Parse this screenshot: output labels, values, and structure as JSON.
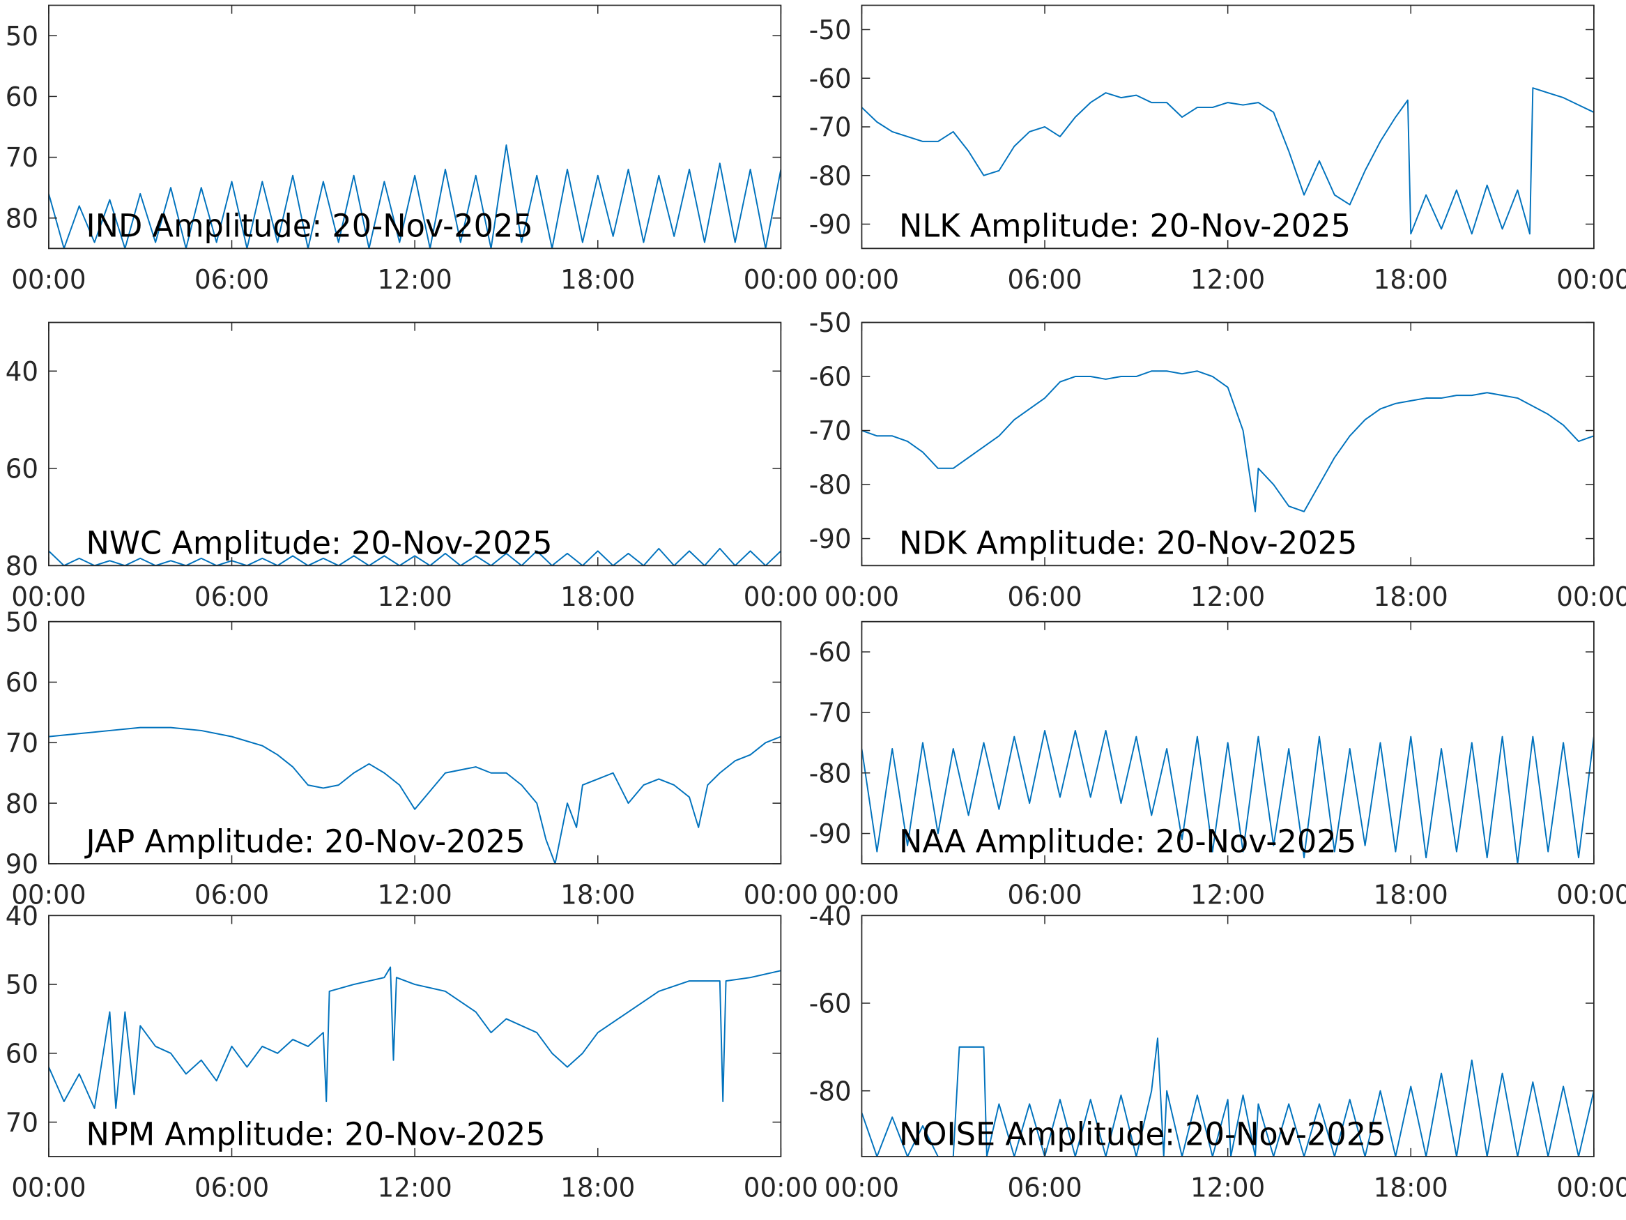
{
  "chart_data": [
    {
      "type": "line",
      "annotation": "IND Amplitude: 20-Nov-2025",
      "x": [
        0,
        0.5,
        1,
        1.5,
        2,
        2.5,
        3,
        3.5,
        4,
        4.5,
        5,
        5.5,
        6,
        6.5,
        7,
        7.5,
        8,
        8.5,
        9,
        9.5,
        10,
        10.5,
        11,
        11.5,
        12,
        12.5,
        13,
        13.5,
        14,
        14.5,
        15,
        15.5,
        16,
        16.5,
        17,
        17.5,
        18,
        18.5,
        19,
        19.5,
        20,
        20.5,
        21,
        21.5,
        22,
        22.5,
        23,
        23.5,
        24
      ],
      "series": [
        {
          "color": "#0072bd",
          "values": [
            -76,
            -85,
            -78,
            -84,
            -77,
            -85,
            -76,
            -84,
            -75,
            -85,
            -75,
            -84,
            -74,
            -85,
            -74,
            -84,
            -73,
            -85,
            -74,
            -84,
            -73,
            -85,
            -74,
            -84,
            -73,
            -85,
            -72,
            -84,
            -73,
            -85,
            -68,
            -84,
            -73,
            -85,
            -72,
            -84,
            -73,
            -83,
            -72,
            -84,
            -73,
            -83,
            -72,
            -84,
            -71,
            -84,
            -72,
            -85,
            -72
          ]
        }
      ],
      "xlim": [
        0,
        24
      ],
      "xticks": [
        {
          "value": 0,
          "label": "00:00"
        },
        {
          "value": 6,
          "label": "06:00"
        },
        {
          "value": 12,
          "label": "12:00"
        },
        {
          "value": 18,
          "label": "18:00"
        },
        {
          "value": 24,
          "label": "00:00"
        }
      ],
      "ylim": [
        -85,
        -45
      ],
      "yticks": [
        {
          "value": -50,
          "label": "50"
        },
        {
          "value": -60,
          "label": "60"
        },
        {
          "value": -70,
          "label": "70"
        },
        {
          "value": -80,
          "label": "80"
        }
      ]
    },
    {
      "type": "line",
      "annotation": "NLK Amplitude: 20-Nov-2025",
      "x": [
        0,
        0.5,
        1,
        1.5,
        2,
        2.5,
        3,
        3.5,
        4,
        4.5,
        5,
        5.5,
        6,
        6.5,
        7,
        7.5,
        8,
        8.5,
        9,
        9.5,
        10,
        10.5,
        11,
        11.5,
        12,
        12.5,
        13,
        13.5,
        14,
        14.5,
        15,
        15.5,
        16,
        16.5,
        17,
        17.5,
        17.9,
        18,
        18.5,
        19,
        19.5,
        20,
        20.5,
        21,
        21.5,
        21.9,
        22,
        22.5,
        23,
        23.5,
        24
      ],
      "series": [
        {
          "color": "#0072bd",
          "values": [
            -66,
            -69,
            -71,
            -72,
            -73,
            -73,
            -71,
            -75,
            -80,
            -79,
            -74,
            -71,
            -70,
            -72,
            -68,
            -65,
            -63,
            -64,
            -63.5,
            -65,
            -65,
            -68,
            -66,
            -66,
            -65,
            -65.5,
            -65,
            -67,
            -75,
            -84,
            -77,
            -84,
            -86,
            -79,
            -73,
            -68,
            -64.5,
            -92,
            -84,
            -91,
            -83,
            -92,
            -82,
            -91,
            -83,
            -92,
            -62,
            -63,
            -64,
            -65.5,
            -67
          ]
        }
      ],
      "xlim": [
        0,
        24
      ],
      "xticks": [
        {
          "value": 0,
          "label": "00:00"
        },
        {
          "value": 6,
          "label": "06:00"
        },
        {
          "value": 12,
          "label": "12:00"
        },
        {
          "value": 18,
          "label": "18:00"
        },
        {
          "value": 24,
          "label": "00:00"
        }
      ],
      "ylim": [
        -95,
        -45
      ],
      "yticks": [
        -50,
        -60,
        -70,
        -80,
        -90
      ]
    },
    {
      "type": "line",
      "annotation": "NWC Amplitude: 20-Nov-2025",
      "x": [
        0,
        0.5,
        1,
        1.5,
        2,
        2.5,
        3,
        3.5,
        4,
        4.5,
        5,
        5.5,
        6,
        6.5,
        7,
        7.5,
        8,
        8.5,
        9,
        9.5,
        10,
        10.5,
        11,
        11.5,
        12,
        12.5,
        13,
        13.5,
        14,
        14.5,
        15,
        15.5,
        16,
        16.5,
        17,
        17.5,
        18,
        18.5,
        19,
        19.5,
        20,
        20.5,
        21,
        21.5,
        22,
        22.5,
        23,
        23.5,
        24
      ],
      "series": [
        {
          "color": "#0072bd",
          "values": [
            -77,
            -80,
            -78.5,
            -80,
            -79,
            -80,
            -78.5,
            -80,
            -79,
            -80,
            -78.5,
            -80,
            -79,
            -80,
            -78.5,
            -80,
            -78,
            -80,
            -78.5,
            -80,
            -78,
            -80,
            -78,
            -80,
            -78,
            -80,
            -77.5,
            -80,
            -78,
            -80,
            -77.5,
            -80,
            -77,
            -80,
            -77.5,
            -80,
            -77,
            -80,
            -77.5,
            -80,
            -76.5,
            -80,
            -77,
            -80,
            -76.5,
            -80,
            -77,
            -80,
            -77
          ]
        }
      ],
      "xlim": [
        0,
        24
      ],
      "xticks": [
        {
          "value": 0,
          "label": "00:00"
        },
        {
          "value": 6,
          "label": "06:00"
        },
        {
          "value": 12,
          "label": "12:00"
        },
        {
          "value": 18,
          "label": "18:00"
        },
        {
          "value": 24,
          "label": "00:00"
        }
      ],
      "ylim": [
        -80,
        -30
      ],
      "yticks": [
        {
          "value": -40,
          "label": "40"
        },
        {
          "value": -60,
          "label": "60"
        },
        {
          "value": -80,
          "label": "80"
        }
      ]
    },
    {
      "type": "line",
      "annotation": "NDK Amplitude: 20-Nov-2025",
      "x": [
        0,
        0.5,
        1,
        1.5,
        2,
        2.5,
        3,
        3.5,
        4,
        4.5,
        5,
        5.5,
        6,
        6.5,
        7,
        7.5,
        8,
        8.5,
        9,
        9.5,
        10,
        10.5,
        11,
        11.5,
        12,
        12.5,
        12.9,
        13,
        13.5,
        14,
        14.5,
        15,
        15.5,
        16,
        16.5,
        17,
        17.5,
        18,
        18.5,
        19,
        19.5,
        20,
        20.5,
        21,
        21.5,
        22,
        22.5,
        23,
        23.5,
        24
      ],
      "series": [
        {
          "color": "#0072bd",
          "values": [
            -70,
            -71,
            -71,
            -72,
            -74,
            -77,
            -77,
            -75,
            -73,
            -71,
            -68,
            -66,
            -64,
            -61,
            -60,
            -60,
            -60.5,
            -60,
            -60,
            -59,
            -59,
            -59.5,
            -59,
            -60,
            -62,
            -70,
            -85,
            -77,
            -80,
            -84,
            -85,
            -80,
            -75,
            -71,
            -68,
            -66,
            -65,
            -64.5,
            -64,
            -64,
            -63.5,
            -63.5,
            -63,
            -63.5,
            -64,
            -65.5,
            -67,
            -69,
            -72,
            -71
          ]
        }
      ],
      "xlim": [
        0,
        24
      ],
      "xticks": [
        {
          "value": 0,
          "label": "00:00"
        },
        {
          "value": 6,
          "label": "06:00"
        },
        {
          "value": 12,
          "label": "12:00"
        },
        {
          "value": 18,
          "label": "18:00"
        },
        {
          "value": 24,
          "label": "00:00"
        }
      ],
      "ylim": [
        -95,
        -50
      ],
      "yticks": [
        -50,
        -60,
        -70,
        -80,
        -90
      ]
    },
    {
      "type": "line",
      "annotation": "JAP Amplitude: 20-Nov-2025",
      "x": [
        0,
        1,
        2,
        3,
        4,
        5,
        6,
        7,
        7.5,
        8,
        8.5,
        9,
        9.5,
        10,
        10.5,
        11,
        11.5,
        12,
        12.5,
        13,
        13.5,
        14,
        14.5,
        15,
        15.5,
        16,
        16.3,
        16.6,
        17,
        17.3,
        17.5,
        18,
        18.5,
        19,
        19.5,
        20,
        20.5,
        21,
        21.3,
        21.6,
        22,
        22.5,
        23,
        23.5,
        24
      ],
      "series": [
        {
          "color": "#0072bd",
          "values": [
            -69,
            -68.5,
            -68,
            -67.5,
            -67.5,
            -68,
            -69,
            -70.5,
            -72,
            -74,
            -77,
            -77.5,
            -77,
            -75,
            -73.5,
            -75,
            -77,
            -81,
            -78,
            -75,
            -74.5,
            -74,
            -75,
            -75,
            -77,
            -80,
            -86,
            -90,
            -80,
            -84,
            -77,
            -76,
            -75,
            -80,
            -77,
            -76,
            -77,
            -79,
            -84,
            -77,
            -75,
            -73,
            -72,
            -70,
            -69
          ]
        }
      ],
      "xlim": [
        0,
        24
      ],
      "xticks": [
        {
          "value": 0,
          "label": "00:00"
        },
        {
          "value": 6,
          "label": "06:00"
        },
        {
          "value": 12,
          "label": "12:00"
        },
        {
          "value": 18,
          "label": "18:00"
        },
        {
          "value": 24,
          "label": "00:00"
        }
      ],
      "ylim": [
        -90,
        -50
      ],
      "yticks": [
        {
          "value": -50,
          "label": "50"
        },
        {
          "value": -60,
          "label": "60"
        },
        {
          "value": -70,
          "label": "70"
        },
        {
          "value": -80,
          "label": "80"
        },
        {
          "value": -90,
          "label": "90"
        }
      ]
    },
    {
      "type": "line",
      "annotation": "NAA Amplitude: 20-Nov-2025",
      "x": [
        0,
        0.5,
        1,
        1.5,
        2,
        2.5,
        3,
        3.5,
        4,
        4.5,
        5,
        5.5,
        6,
        6.5,
        7,
        7.5,
        8,
        8.5,
        9,
        9.5,
        10,
        10.5,
        11,
        11.5,
        12,
        12.5,
        13,
        13.5,
        14,
        14.5,
        15,
        15.5,
        16,
        16.5,
        17,
        17.5,
        18,
        18.5,
        19,
        19.5,
        20,
        20.5,
        21,
        21.5,
        22,
        22.5,
        23,
        23.5,
        24
      ],
      "series": [
        {
          "color": "#0072bd",
          "values": [
            -76,
            -93,
            -76,
            -92,
            -75,
            -90,
            -76,
            -87,
            -75,
            -86,
            -74,
            -85,
            -73,
            -84,
            -73,
            -84,
            -73,
            -85,
            -74,
            -87,
            -76,
            -91,
            -74,
            -93,
            -75,
            -93,
            -74,
            -92,
            -76,
            -94,
            -74,
            -93,
            -76,
            -92,
            -75,
            -93,
            -74,
            -94,
            -76,
            -93,
            -75,
            -94,
            -74,
            -95,
            -74,
            -93,
            -75,
            -94,
            -74
          ]
        }
      ],
      "xlim": [
        0,
        24
      ],
      "xticks": [
        {
          "value": 0,
          "label": "00:00"
        },
        {
          "value": 6,
          "label": "06:00"
        },
        {
          "value": 12,
          "label": "12:00"
        },
        {
          "value": 18,
          "label": "18:00"
        },
        {
          "value": 24,
          "label": "00:00"
        }
      ],
      "ylim": [
        -95,
        -55
      ],
      "yticks": [
        -60,
        -70,
        -80,
        -90
      ]
    },
    {
      "type": "line",
      "annotation": "NPM Amplitude: 20-Nov-2025",
      "x": [
        0,
        0.5,
        1,
        1.5,
        2,
        2.2,
        2.5,
        2.8,
        3,
        3.5,
        4,
        4.5,
        5,
        5.5,
        6,
        6.5,
        7,
        7.5,
        8,
        8.5,
        9,
        9.1,
        9.2,
        10,
        11,
        11.2,
        11.3,
        11.4,
        12,
        13,
        14,
        14.5,
        15,
        16,
        16.5,
        17,
        17.5,
        18,
        19,
        20,
        21,
        22,
        22.1,
        22.2,
        23,
        24
      ],
      "series": [
        {
          "color": "#0072bd",
          "values": [
            -62,
            -67,
            -63,
            -68,
            -54,
            -68,
            -54,
            -66,
            -56,
            -59,
            -60,
            -63,
            -61,
            -64,
            -59,
            -62,
            -59,
            -60,
            -58,
            -59,
            -57,
            -67,
            -51,
            -50,
            -49,
            -47.5,
            -61,
            -49,
            -50,
            -51,
            -54,
            -57,
            -55,
            -57,
            -60,
            -62,
            -60,
            -57,
            -54,
            -51,
            -49.5,
            -49.5,
            -67,
            -49.5,
            -49,
            -48
          ]
        }
      ],
      "xlim": [
        0,
        24
      ],
      "xticks": [
        {
          "value": 0,
          "label": "00:00"
        },
        {
          "value": 6,
          "label": "06:00"
        },
        {
          "value": 12,
          "label": "12:00"
        },
        {
          "value": 18,
          "label": "18:00"
        },
        {
          "value": 24,
          "label": "00:00"
        }
      ],
      "ylim": [
        -75,
        -40
      ],
      "yticks": [
        {
          "value": -40,
          "label": "40"
        },
        {
          "value": -50,
          "label": "50"
        },
        {
          "value": -60,
          "label": "60"
        },
        {
          "value": -70,
          "label": "70"
        }
      ]
    },
    {
      "type": "line",
      "annotation": "NOISE Amplitude: 20-Nov-2025",
      "x": [
        0,
        0.5,
        1,
        1.5,
        2,
        2.5,
        3,
        3.2,
        3.5,
        4,
        4.1,
        4.5,
        5,
        5.5,
        6,
        6.5,
        7,
        7.5,
        8,
        8.5,
        9,
        9.5,
        9.7,
        9.9,
        10,
        10.5,
        11,
        11.5,
        12,
        12.1,
        12.5,
        12.9,
        13,
        13.5,
        14,
        14.5,
        15,
        15.5,
        16,
        16.5,
        17,
        17.5,
        18,
        18.5,
        19,
        19.5,
        20,
        20.5,
        21,
        21.5,
        22,
        22.5,
        23,
        23.5,
        24
      ],
      "series": [
        {
          "color": "#0072bd",
          "values": [
            -85,
            -95,
            -86,
            -95,
            -88,
            -95,
            -95,
            -70,
            -70,
            -70,
            -95,
            -83,
            -95,
            -83,
            -95,
            -82,
            -95,
            -82,
            -95,
            -81,
            -95,
            -80,
            -68,
            -95,
            -80,
            -95,
            -81,
            -95,
            -82,
            -95,
            -81,
            -95,
            -83,
            -95,
            -83,
            -95,
            -83,
            -95,
            -82,
            -95,
            -80,
            -95,
            -79,
            -95,
            -76,
            -95,
            -73,
            -95,
            -76,
            -95,
            -78,
            -95,
            -79,
            -95,
            -80
          ]
        }
      ],
      "xlim": [
        0,
        24
      ],
      "xticks": [
        {
          "value": 0,
          "label": "00:00"
        },
        {
          "value": 6,
          "label": "06:00"
        },
        {
          "value": 12,
          "label": "12:00"
        },
        {
          "value": 18,
          "label": "18:00"
        },
        {
          "value": 24,
          "label": "00:00"
        }
      ],
      "ylim": [
        -95,
        -40
      ],
      "yticks": [
        -40,
        -60,
        -80
      ]
    }
  ]
}
